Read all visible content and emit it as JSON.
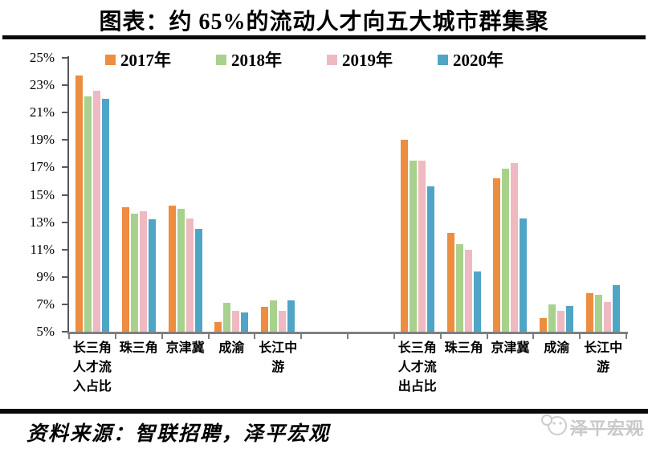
{
  "page": {
    "title": "图表：约 65%的流动人才向五大城市群集聚",
    "footer_source": "资料来源：智联招聘，泽平宏观",
    "watermark_label": "泽平宏观"
  },
  "colors": {
    "year_2017": "#ED8D40",
    "year_2018": "#A9D18E",
    "year_2019": "#EFB9C1",
    "year_2020": "#4FA5C6",
    "axis": "#7f7f7f",
    "rule": "#0a0a0a",
    "watermark": "#c9c9c9"
  },
  "chart_data": {
    "type": "bar",
    "title": "图表：约 65%的流动人才向五大城市群集聚",
    "ylabel": "",
    "xlabel": "",
    "ylim": [
      5,
      25
    ],
    "ytick_step": 2,
    "ytick_suffix": "%",
    "grid": false,
    "legend_position": "top",
    "legend": [
      {
        "label": "2017年",
        "color": "#ED8D40"
      },
      {
        "label": "2018年",
        "color": "#A9D18E"
      },
      {
        "label": "2019年",
        "color": "#EFB9C1"
      },
      {
        "label": "2020年",
        "color": "#4FA5C6"
      }
    ],
    "gap_slots": 2,
    "clusters": [
      {
        "name": "人才流入占比",
        "categories": [
          {
            "label_lines": [
              "长三角",
              "人才流",
              "入占比"
            ]
          },
          {
            "label_lines": [
              "珠三角"
            ]
          },
          {
            "label_lines": [
              "京津冀"
            ]
          },
          {
            "label_lines": [
              "成渝"
            ]
          },
          {
            "label_lines": [
              "长江中",
              "游"
            ]
          }
        ],
        "series": [
          {
            "name": "2017年",
            "color": "#ED8D40",
            "values": [
              23.7,
              14.1,
              14.2,
              5.7,
              6.8
            ]
          },
          {
            "name": "2018年",
            "color": "#A9D18E",
            "values": [
              22.2,
              13.6,
              14.0,
              7.1,
              7.3
            ]
          },
          {
            "name": "2019年",
            "color": "#EFB9C1",
            "values": [
              22.6,
              13.8,
              13.3,
              6.5,
              6.5
            ]
          },
          {
            "name": "2020年",
            "color": "#4FA5C6",
            "values": [
              22.0,
              13.2,
              12.5,
              6.4,
              7.3
            ]
          }
        ]
      },
      {
        "name": "人才流出占比",
        "categories": [
          {
            "label_lines": [
              "长三角",
              "人才流",
              "出占比"
            ]
          },
          {
            "label_lines": [
              "珠三角"
            ]
          },
          {
            "label_lines": [
              "京津冀"
            ]
          },
          {
            "label_lines": [
              "成渝"
            ]
          },
          {
            "label_lines": [
              "长江中",
              "游"
            ]
          }
        ],
        "series": [
          {
            "name": "2017年",
            "color": "#ED8D40",
            "values": [
              19.0,
              12.2,
              16.2,
              6.0,
              7.8
            ]
          },
          {
            "name": "2018年",
            "color": "#A9D18E",
            "values": [
              17.5,
              11.4,
              16.9,
              7.0,
              7.7
            ]
          },
          {
            "name": "2019年",
            "color": "#EFB9C1",
            "values": [
              17.5,
              11.0,
              17.3,
              6.5,
              7.2
            ]
          },
          {
            "name": "2020年",
            "color": "#4FA5C6",
            "values": [
              15.6,
              9.4,
              13.3,
              6.9,
              8.4
            ]
          }
        ]
      }
    ]
  }
}
